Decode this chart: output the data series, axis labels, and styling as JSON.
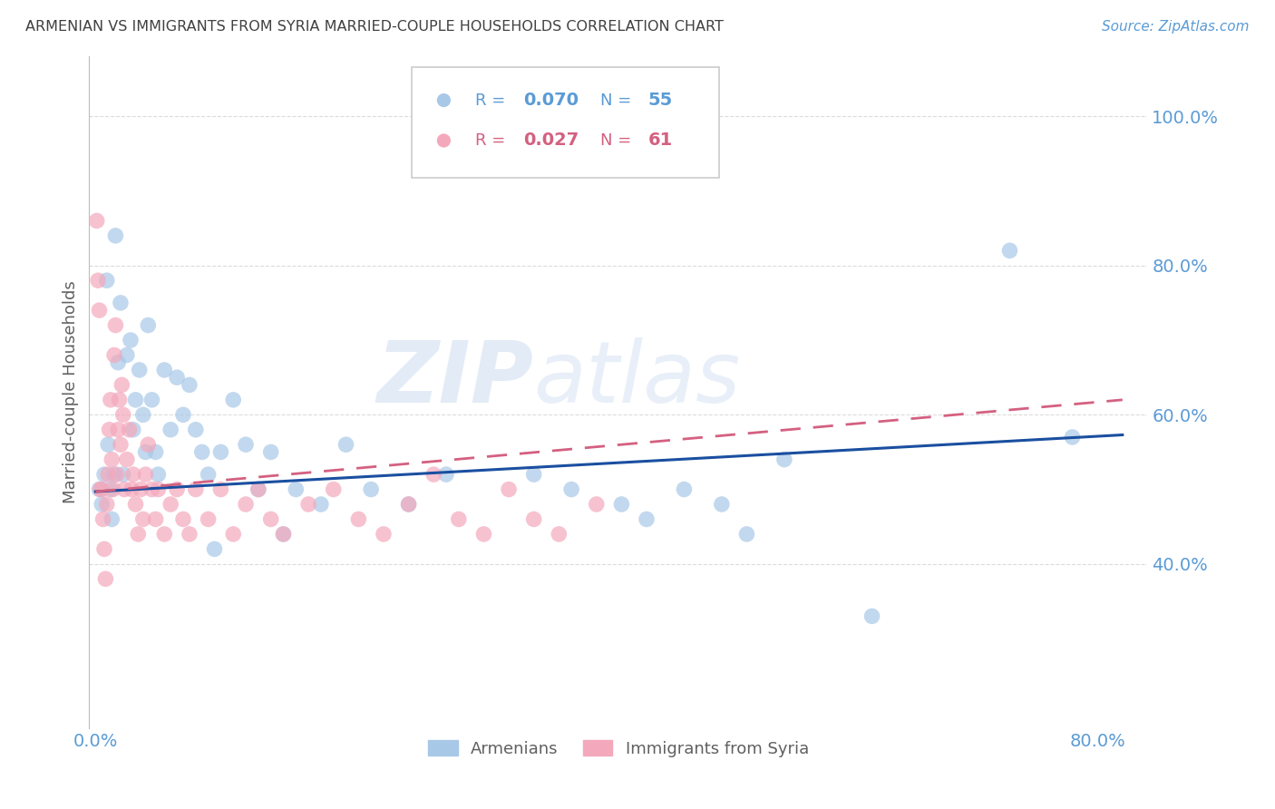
{
  "title": "ARMENIAN VS IMMIGRANTS FROM SYRIA MARRIED-COUPLE HOUSEHOLDS CORRELATION CHART",
  "source": "Source: ZipAtlas.com",
  "ylabel": "Married-couple Households",
  "legend_label1": "Armenians",
  "legend_label2": "Immigrants from Syria",
  "r1": 0.07,
  "n1": 55,
  "r2": 0.027,
  "n2": 61,
  "xlim": [
    -0.005,
    0.84
  ],
  "ylim": [
    0.18,
    1.08
  ],
  "watermark_zip": "ZIP",
  "watermark_atlas": "atlas",
  "color_blue": "#a8c8e8",
  "color_pink": "#f4a8bc",
  "line_blue": "#1a4fa0",
  "line_pink": "#d46080",
  "bg_color": "#ffffff",
  "grid_color": "#d8d8d8",
  "tick_color": "#5b9bd5",
  "title_color": "#404040",
  "axis_label_color": "#606060",
  "armenians_x": [
    0.003,
    0.005,
    0.007,
    0.009,
    0.01,
    0.012,
    0.013,
    0.015,
    0.016,
    0.018,
    0.02,
    0.022,
    0.025,
    0.028,
    0.03,
    0.032,
    0.035,
    0.038,
    0.04,
    0.042,
    0.045,
    0.048,
    0.05,
    0.055,
    0.06,
    0.065,
    0.07,
    0.075,
    0.08,
    0.085,
    0.09,
    0.095,
    0.1,
    0.11,
    0.12,
    0.13,
    0.14,
    0.15,
    0.16,
    0.18,
    0.2,
    0.22,
    0.25,
    0.28,
    0.35,
    0.38,
    0.42,
    0.44,
    0.47,
    0.5,
    0.52,
    0.55,
    0.62,
    0.73,
    0.78
  ],
  "armenians_y": [
    0.5,
    0.48,
    0.52,
    0.78,
    0.56,
    0.5,
    0.46,
    0.52,
    0.84,
    0.67,
    0.75,
    0.52,
    0.68,
    0.7,
    0.58,
    0.62,
    0.66,
    0.6,
    0.55,
    0.72,
    0.62,
    0.55,
    0.52,
    0.66,
    0.58,
    0.65,
    0.6,
    0.64,
    0.58,
    0.55,
    0.52,
    0.42,
    0.55,
    0.62,
    0.56,
    0.5,
    0.55,
    0.44,
    0.5,
    0.48,
    0.56,
    0.5,
    0.48,
    0.52,
    0.52,
    0.5,
    0.48,
    0.46,
    0.5,
    0.48,
    0.44,
    0.54,
    0.33,
    0.82,
    0.57
  ],
  "syria_x": [
    0.001,
    0.002,
    0.003,
    0.004,
    0.005,
    0.006,
    0.007,
    0.008,
    0.009,
    0.01,
    0.011,
    0.012,
    0.013,
    0.014,
    0.015,
    0.016,
    0.017,
    0.018,
    0.019,
    0.02,
    0.021,
    0.022,
    0.023,
    0.025,
    0.027,
    0.029,
    0.03,
    0.032,
    0.034,
    0.036,
    0.038,
    0.04,
    0.042,
    0.045,
    0.048,
    0.05,
    0.055,
    0.06,
    0.065,
    0.07,
    0.075,
    0.08,
    0.09,
    0.1,
    0.11,
    0.12,
    0.13,
    0.14,
    0.15,
    0.17,
    0.19,
    0.21,
    0.23,
    0.25,
    0.27,
    0.29,
    0.31,
    0.33,
    0.35,
    0.37,
    0.4
  ],
  "syria_y": [
    0.86,
    0.78,
    0.74,
    0.5,
    0.5,
    0.46,
    0.42,
    0.38,
    0.48,
    0.52,
    0.58,
    0.62,
    0.54,
    0.5,
    0.68,
    0.72,
    0.52,
    0.58,
    0.62,
    0.56,
    0.64,
    0.6,
    0.5,
    0.54,
    0.58,
    0.5,
    0.52,
    0.48,
    0.44,
    0.5,
    0.46,
    0.52,
    0.56,
    0.5,
    0.46,
    0.5,
    0.44,
    0.48,
    0.5,
    0.46,
    0.44,
    0.5,
    0.46,
    0.5,
    0.44,
    0.48,
    0.5,
    0.46,
    0.44,
    0.48,
    0.5,
    0.46,
    0.44,
    0.48,
    0.52,
    0.46,
    0.44,
    0.5,
    0.46,
    0.44,
    0.48
  ],
  "blue_trend_x0": 0.0,
  "blue_trend_y0": 0.497,
  "blue_trend_x1": 0.82,
  "blue_trend_y1": 0.573,
  "pink_trend_x0": 0.0,
  "pink_trend_y0": 0.497,
  "pink_trend_x1": 0.82,
  "pink_trend_y1": 0.62
}
